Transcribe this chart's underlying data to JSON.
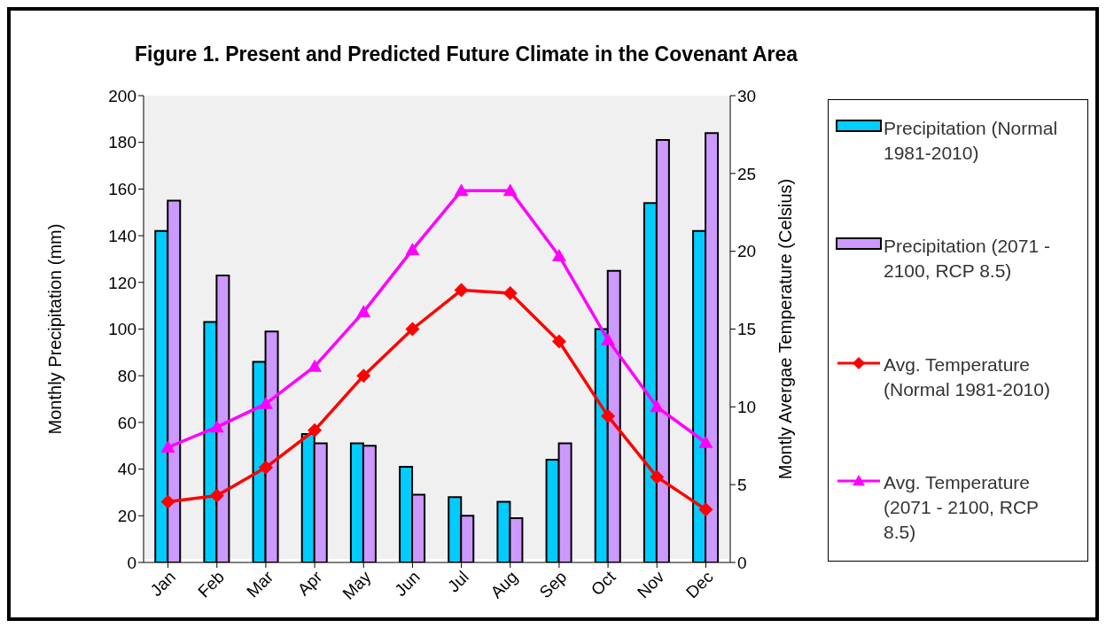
{
  "chart_data": {
    "type": "bar",
    "title": "Figure 1. Present and Predicted Future Climate in the Covenant Area",
    "categories": [
      "Jan",
      "Feb",
      "Mar",
      "Apr",
      "May",
      "Jun",
      "Jul",
      "Aug",
      "Sep",
      "Oct",
      "Nov",
      "Dec"
    ],
    "series": [
      {
        "name": "Precipitation (Normal 1981-2010)",
        "color": "#00ccff",
        "values": [
          142,
          103,
          86,
          55,
          51,
          41,
          28,
          26,
          44,
          100,
          154,
          142
        ]
      },
      {
        "name": "Precipitation (2071 - 2100, RCP 8.5)",
        "color": "#cc99ff",
        "values": [
          155,
          123,
          99,
          51,
          50,
          29,
          20,
          19,
          51,
          125,
          181,
          184
        ]
      },
      {
        "name": "Avg. Temperature (Normal 1981-2010)",
        "type": "line",
        "axis": "y2",
        "marker": "diamond",
        "color": "#ff0000",
        "values": [
          3.9,
          4.3,
          6.1,
          8.5,
          12.0,
          15.0,
          17.5,
          17.3,
          14.2,
          9.4,
          5.5,
          3.4
        ]
      },
      {
        "name": "Avg. Temperature (2071 - 2100, RCP 8.5)",
        "type": "line",
        "axis": "y2",
        "marker": "triangle",
        "color": "#ff00ff",
        "values": [
          7.4,
          8.7,
          10.2,
          12.6,
          16.1,
          20.1,
          23.9,
          23.9,
          19.7,
          14.3,
          10.0,
          7.7
        ]
      }
    ],
    "ylabel": "Monthly Precipitation (mm)",
    "y2label": "Montly Avergae Temperature (Celsius)",
    "ylim": [
      0,
      200
    ],
    "yticks": [
      0,
      20,
      40,
      60,
      80,
      100,
      120,
      140,
      160,
      180,
      200
    ],
    "y2lim": [
      0,
      30
    ],
    "y2ticks": [
      0,
      5,
      10,
      15,
      20,
      25,
      30
    ],
    "grid": false,
    "legend": "right"
  }
}
